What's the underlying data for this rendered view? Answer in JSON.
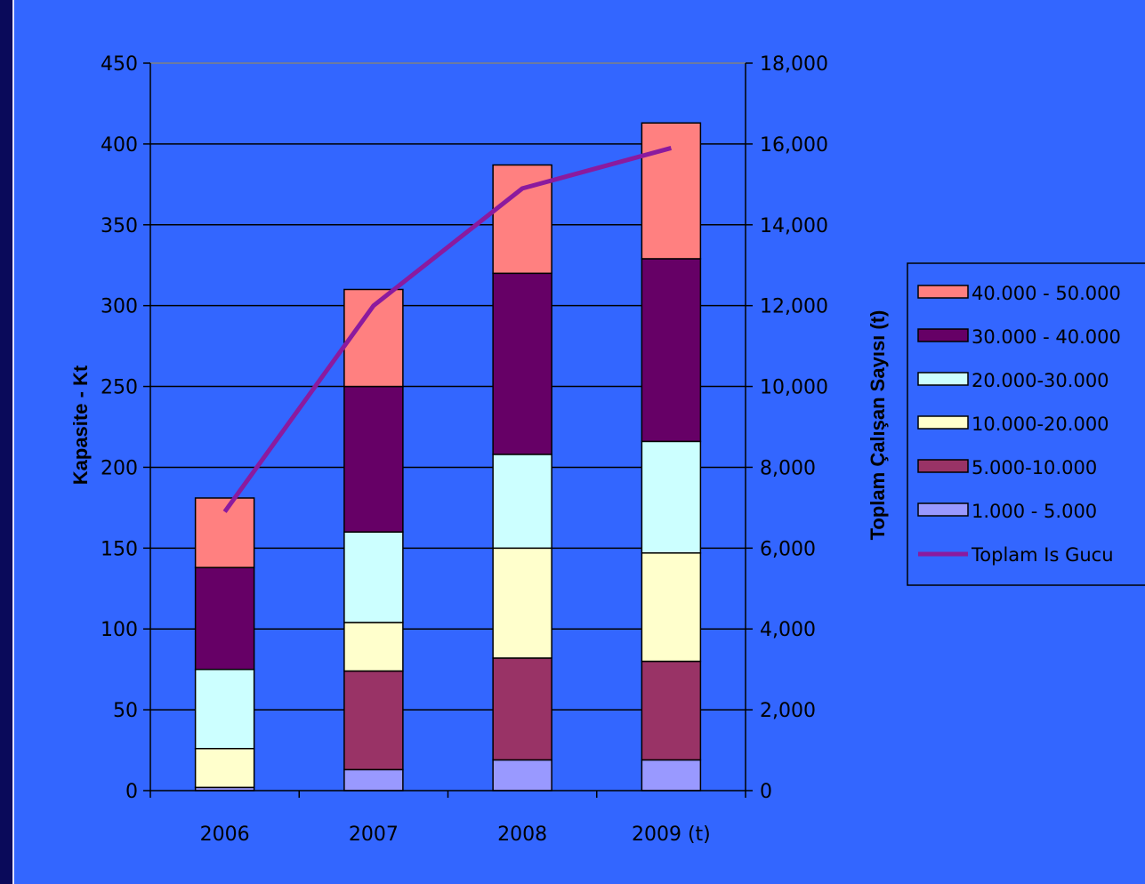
{
  "chart_data": {
    "type": "bar",
    "stacked": true,
    "categories": [
      "2006",
      "2007",
      "2008",
      "2009 (t)"
    ],
    "ylabel": "Kapasite - Kt",
    "y2label": "Toplam Çalışan Sayısı (t)",
    "ylim": [
      0,
      450
    ],
    "y2lim": [
      0,
      18000
    ],
    "yticks": [
      "0",
      "50",
      "100",
      "150",
      "200",
      "250",
      "300",
      "350",
      "400",
      "450"
    ],
    "y2ticks": [
      "0",
      "2,000",
      "4,000",
      "6,000",
      "8,000",
      "10,000",
      "12,000",
      "14,000",
      "16,000",
      "18,000"
    ],
    "grid": true,
    "legend_position": "right",
    "series": [
      {
        "name": "1.000 - 5.000",
        "color": "#9999ff",
        "values": [
          2,
          13,
          19,
          19
        ]
      },
      {
        "name": "5.000-10.000",
        "color": "#993366",
        "values": [
          0,
          61,
          63,
          61
        ]
      },
      {
        "name": "10.000-20.000",
        "color": "#ffffcc",
        "values": [
          24,
          30,
          68,
          67
        ]
      },
      {
        "name": "20.000-30.000",
        "color": "#ccffff",
        "values": [
          49,
          56,
          58,
          69
        ]
      },
      {
        "name": "30.000 - 40.000",
        "color": "#660066",
        "values": [
          63,
          90,
          112,
          113
        ]
      },
      {
        "name": "40.000 - 50.000",
        "color": "#ff8080",
        "values": [
          43,
          60,
          67,
          84
        ]
      }
    ],
    "line_series": {
      "name": "Toplam Is Gucu",
      "color": "#8b1a9e",
      "axis": "right",
      "values": [
        6900,
        12000,
        14900,
        15900
      ]
    }
  }
}
